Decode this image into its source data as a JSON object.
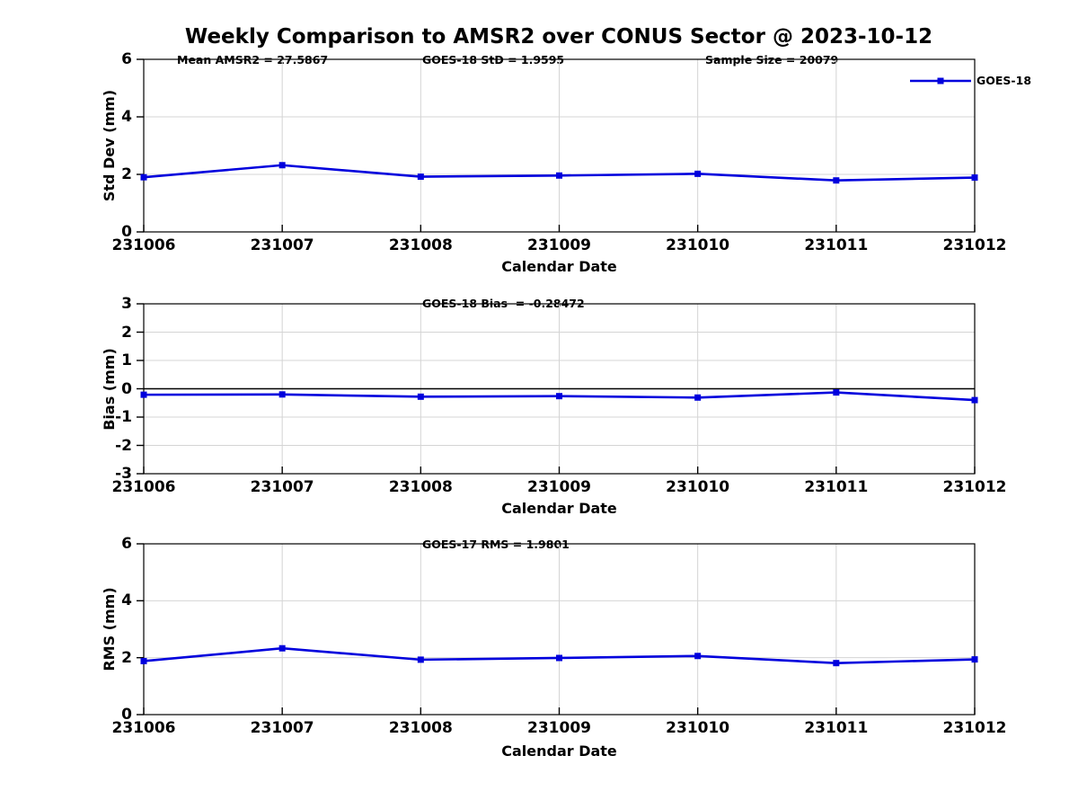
{
  "title": "Weekly Comparison to AMSR2 over CONUS Sector @ 2023-10-12",
  "legend": {
    "label": "GOES-18"
  },
  "colors": {
    "line": "#0000dd",
    "grid": "#d4d4d4",
    "axis": "#000000"
  },
  "chart_data": [
    {
      "type": "line",
      "ylabel": "Std Dev (mm)",
      "xlabel": "Calendar Date",
      "annotations": [
        "Mean AMSR2 = 27.5867",
        "GOES-18 StD = 1.9595",
        "Sample Size = 20079"
      ],
      "categories": [
        "231006",
        "231007",
        "231008",
        "231009",
        "231010",
        "231011",
        "231012"
      ],
      "series": [
        {
          "name": "GOES-18",
          "values": [
            1.9,
            2.32,
            1.92,
            1.96,
            2.02,
            1.79,
            1.89
          ]
        }
      ],
      "ylim": [
        0,
        6
      ],
      "yticks": [
        0,
        2,
        4,
        6
      ],
      "zero_line": false,
      "grid": true,
      "legend_position": "top-right"
    },
    {
      "type": "line",
      "ylabel": "Bias (mm)",
      "xlabel": "Calendar Date",
      "annotations": [
        "GOES-18 Bias  = -0.28472"
      ],
      "categories": [
        "231006",
        "231007",
        "231008",
        "231009",
        "231010",
        "231011",
        "231012"
      ],
      "series": [
        {
          "name": "GOES-18",
          "values": [
            -0.21,
            -0.2,
            -0.28,
            -0.26,
            -0.31,
            -0.13,
            -0.4
          ]
        }
      ],
      "ylim": [
        -3,
        3
      ],
      "yticks": [
        -3,
        -2,
        -1,
        0,
        1,
        2,
        3
      ],
      "zero_line": true,
      "grid": true
    },
    {
      "type": "line",
      "ylabel": "RMS (mm)",
      "xlabel": "Calendar Date",
      "annotations": [
        "GOES-17 RMS = 1.9801"
      ],
      "categories": [
        "231006",
        "231007",
        "231008",
        "231009",
        "231010",
        "231011",
        "231012"
      ],
      "series": [
        {
          "name": "GOES-18",
          "values": [
            1.88,
            2.33,
            1.93,
            1.99,
            2.06,
            1.81,
            1.94
          ]
        }
      ],
      "ylim": [
        0,
        6
      ],
      "yticks": [
        0,
        2,
        4,
        6
      ],
      "zero_line": false,
      "grid": true
    }
  ]
}
